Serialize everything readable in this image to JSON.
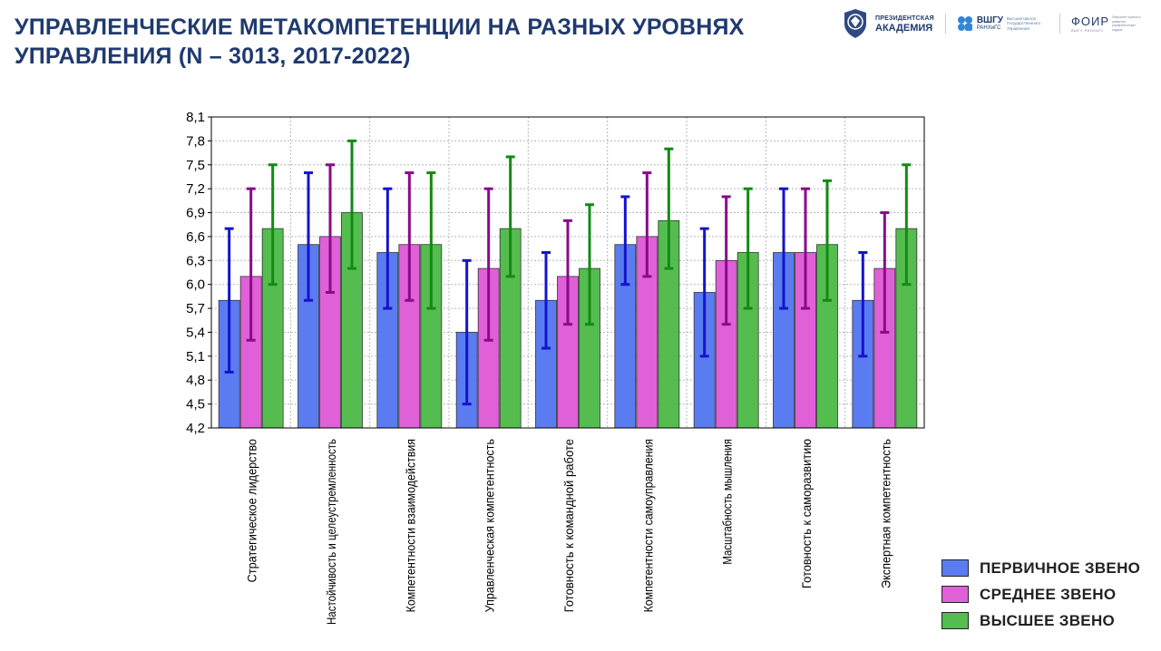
{
  "title": "УПРАВЛЕНЧЕСКИЕ МЕТАКОМПЕТЕНЦИИ НА РАЗНЫХ УРОВНЯХ УПРАВЛЕНИЯ (N – 3013, 2017-2022)",
  "logos": {
    "akademia_line1": "ПРЕЗИДЕНТСКАЯ",
    "akademia_line2": "АКАДЕМИЯ",
    "vshgu_main": "ВШГУ",
    "vshgu_sub": "РАНХиГС",
    "vshgu_desc": "Высшая Школа Государственного Управления",
    "foir_main": "ФОИР",
    "foir_sub": "ВШГУ РАНХиГС",
    "foir_desc": "Факультет оценки и развития управленческих кадров"
  },
  "colors": {
    "series": [
      "#5b7cf0",
      "#e060d8",
      "#55bd4f"
    ],
    "errors": [
      "#1414cc",
      "#8a0a8a",
      "#138a13"
    ],
    "title": "#1f3a6e"
  },
  "legend": [
    {
      "label": "ПЕРВИЧНОЕ ЗВЕНО"
    },
    {
      "label": "СРЕДНЕЕ ЗВЕНО"
    },
    {
      "label": "ВЫСШЕЕ ЗВЕНО"
    }
  ],
  "chart_data": {
    "type": "bar",
    "title": "",
    "xlabel": "",
    "ylabel": "",
    "ylim": [
      4.2,
      8.1
    ],
    "yticks": [
      "4,2",
      "4,5",
      "4,8",
      "5,1",
      "5,4",
      "5,7",
      "6,0",
      "6,3",
      "6,6",
      "6,9",
      "7,2",
      "7,5",
      "7,8",
      "8,1"
    ],
    "grid": true,
    "categories": [
      "Стратегическое лидерство",
      "Настойчивость и целеустремленность",
      "Компетентности взаимодействия",
      "Управленческая компетентность",
      "Готовность к командной работе",
      "Компетентности самоуправления",
      "Масштабность мышления",
      "Готовность к саморазвитию",
      "Экспертная компетентность"
    ],
    "series": [
      {
        "name": "ПЕРВИЧНОЕ ЗВЕНО",
        "values": [
          5.8,
          6.5,
          6.4,
          5.4,
          5.8,
          6.5,
          5.9,
          6.4,
          5.8
        ],
        "err_low": [
          4.9,
          5.8,
          5.7,
          4.5,
          5.2,
          6.0,
          5.1,
          5.7,
          5.1
        ],
        "err_high": [
          6.7,
          7.4,
          7.2,
          6.3,
          6.4,
          7.1,
          6.7,
          7.2,
          6.4
        ]
      },
      {
        "name": "СРЕДНЕЕ ЗВЕНО",
        "values": [
          6.1,
          6.6,
          6.5,
          6.2,
          6.1,
          6.6,
          6.3,
          6.4,
          6.2
        ],
        "err_low": [
          5.3,
          5.9,
          5.8,
          5.3,
          5.5,
          6.1,
          5.5,
          5.7,
          5.4
        ],
        "err_high": [
          7.2,
          7.5,
          7.4,
          7.2,
          6.8,
          7.4,
          7.1,
          7.2,
          6.9
        ]
      },
      {
        "name": "ВЫСШЕЕ ЗВЕНО",
        "values": [
          6.7,
          6.9,
          6.5,
          6.7,
          6.2,
          6.8,
          6.4,
          6.5,
          6.7
        ],
        "err_low": [
          6.0,
          6.2,
          5.7,
          6.1,
          5.5,
          6.2,
          5.7,
          5.8,
          6.0
        ],
        "err_high": [
          7.5,
          7.8,
          7.4,
          7.6,
          7.0,
          7.7,
          7.2,
          7.3,
          7.5
        ]
      }
    ]
  }
}
